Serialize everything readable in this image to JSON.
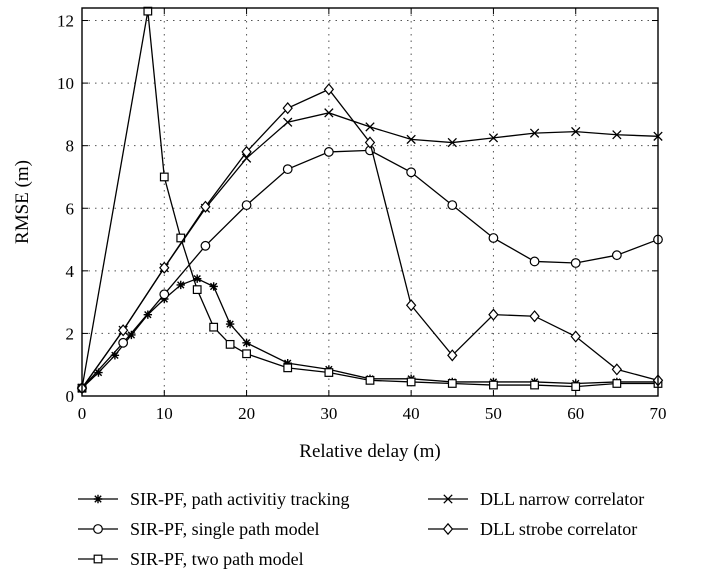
{
  "chart_data": {
    "type": "line",
    "title": "",
    "xlabel": "Relative delay (m)",
    "ylabel": "RMSE (m)",
    "xlim": [
      0,
      70
    ],
    "ylim": [
      0,
      12.4
    ],
    "xticks": [
      0,
      10,
      20,
      30,
      40,
      50,
      60,
      70
    ],
    "yticks": [
      0,
      2,
      4,
      6,
      8,
      10,
      12
    ],
    "grid": true,
    "legend_position": "bottom",
    "series": [
      {
        "name": "SIR-PF, path activitiy tracking",
        "marker": "asterisk",
        "x": [
          0,
          2,
          4,
          6,
          8,
          10,
          12,
          14,
          16,
          18,
          20,
          25,
          30,
          35,
          40,
          45,
          50,
          55,
          60,
          65,
          70
        ],
        "y": [
          0.25,
          0.75,
          1.3,
          1.95,
          2.6,
          3.1,
          3.55,
          3.75,
          3.5,
          2.3,
          1.7,
          1.05,
          0.85,
          0.55,
          0.55,
          0.45,
          0.45,
          0.45,
          0.4,
          0.45,
          0.45
        ]
      },
      {
        "name": "SIR-PF, single path model",
        "marker": "circle",
        "x": [
          0,
          5,
          10,
          15,
          20,
          25,
          30,
          35,
          40,
          45,
          50,
          55,
          60,
          65,
          70
        ],
        "y": [
          0.25,
          1.7,
          3.25,
          4.8,
          6.1,
          7.25,
          7.8,
          7.85,
          7.15,
          6.1,
          5.05,
          4.3,
          4.25,
          4.5,
          5.0
        ]
      },
      {
        "name": "SIR-PF, two path model",
        "marker": "square",
        "x": [
          0,
          8,
          10,
          12,
          14,
          16,
          18,
          20,
          25,
          30,
          35,
          40,
          45,
          50,
          55,
          60,
          65,
          70
        ],
        "y": [
          0.25,
          12.3,
          7.0,
          5.05,
          3.4,
          2.2,
          1.65,
          1.35,
          0.9,
          0.75,
          0.5,
          0.45,
          0.4,
          0.35,
          0.35,
          0.3,
          0.4,
          0.4
        ]
      },
      {
        "name": "DLL narrow correlator",
        "marker": "x",
        "x": [
          0,
          5,
          10,
          15,
          20,
          25,
          30,
          35,
          40,
          45,
          50,
          55,
          60,
          65,
          70
        ],
        "y": [
          0.25,
          2.1,
          4.1,
          6.0,
          7.6,
          8.75,
          9.05,
          8.6,
          8.2,
          8.1,
          8.25,
          8.4,
          8.45,
          8.35,
          8.3
        ]
      },
      {
        "name": "DLL strobe correlator",
        "marker": "diamond",
        "x": [
          0,
          5,
          10,
          15,
          20,
          25,
          30,
          35,
          40,
          45,
          50,
          55,
          60,
          65,
          70
        ],
        "y": [
          0.25,
          2.1,
          4.1,
          6.05,
          7.8,
          9.2,
          9.8,
          8.1,
          2.9,
          1.3,
          2.6,
          2.55,
          1.9,
          0.85,
          0.5
        ]
      }
    ]
  }
}
